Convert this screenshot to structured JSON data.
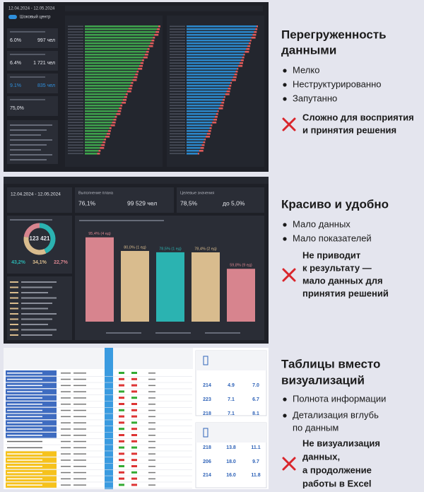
{
  "panels": [
    {
      "title": [
        "Перегруженность",
        "данными"
      ],
      "bullets": [
        [
          "Мелко"
        ],
        [
          "Неструктурированно"
        ],
        [
          "Запутанно"
        ]
      ],
      "verdict": [
        "Сложно для восприятия",
        "и принятия решения"
      ],
      "screen": {
        "date": "12.04.2024 - 12.05.2024",
        "toggle": "Шоковый центр",
        "cards": [
          [
            "6.0%",
            "997 чел"
          ],
          [
            "6.4%",
            "1 721 чел"
          ],
          [
            "9.1%",
            "835 чел"
          ],
          [
            "75,0%"
          ]
        ]
      }
    },
    {
      "title": [
        "Красиво и удобно"
      ],
      "bullets": [
        [
          "Мало данных"
        ],
        [
          "Мало показателей"
        ]
      ],
      "verdict": [
        "Не приводит",
        "к результату —",
        "мало данных для",
        "принятия решений"
      ],
      "screen": {
        "date": "12.04.2024 - 12.05.2024",
        "plan_title": "Выполнение плана",
        "plan": [
          "76,1%",
          "99 529 чел"
        ],
        "target_title": "Целевые значения",
        "target": [
          "78,5%",
          "до 5,0%"
        ],
        "donut": {
          "total": "123 421",
          "values": [
            43.2,
            34.1,
            22.7
          ],
          "value_labels": [
            "43,2%",
            "34,1%",
            "22,7%"
          ],
          "colors": [
            "#2bb3b1",
            "#d9bc8e",
            "#d7848e"
          ]
        },
        "bars": {
          "values": [
            95.4,
            80.0,
            78.5,
            78.4,
            59.8
          ],
          "value_labels": [
            "95,4% (4 ед)",
            "80,0% (1 ед)",
            "78,5% (1 ед)",
            "78,4% (2 ед)",
            "59,8% (9 ед)"
          ],
          "colors": [
            "#d7848e",
            "#d9bc8e",
            "#2bb3b1",
            "#d9bc8e",
            "#d7848e"
          ],
          "ylim": [
            0,
            100
          ]
        }
      }
    },
    {
      "title": [
        "Таблицы вместо",
        "визуализаций"
      ],
      "bullets": [
        [
          "Полнота информации"
        ],
        [
          "Детализация вглубь",
          "по данным"
        ]
      ],
      "verdict": [
        "Не визуализация",
        "данных,",
        "а продолжение",
        "работы в Excel"
      ],
      "screen": {
        "table": {
          "rows": [
            [
              "214",
              "4.9",
              "7.0"
            ],
            [
              "223",
              "7.1",
              "6.7"
            ],
            [
              "218",
              "7.1",
              "8.1"
            ],
            [
              "218",
              "13.8",
              "11.1"
            ],
            [
              "206",
              "18.0",
              "9.7"
            ],
            [
              "214",
              "16.0",
              "11.8"
            ]
          ]
        }
      }
    }
  ]
}
